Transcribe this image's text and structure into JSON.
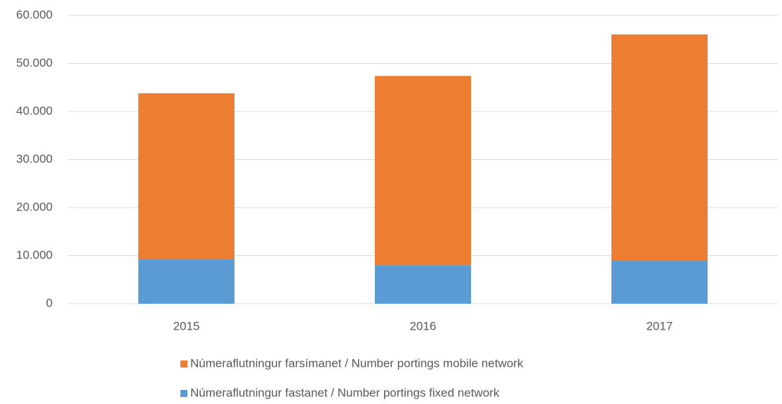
{
  "chart_data": {
    "type": "stacked_bar",
    "categories": [
      "2015",
      "2016",
      "2017"
    ],
    "series": [
      {
        "name": "Númeraflutningur fastanet / Number portings fixed network",
        "color": "#5b9bd5",
        "values": [
          9200,
          8000,
          8900
        ]
      },
      {
        "name": "Númeraflutningur farsímanet / Number portings mobile network",
        "color": "#ed7d31",
        "values": [
          34600,
          39400,
          47150
        ]
      }
    ],
    "ylim": [
      0,
      60000
    ],
    "yticks": [
      0,
      {
        "value": 10000,
        "label": "10.000"
      },
      {
        "value": 20000,
        "label": "20.000"
      },
      {
        "value": 30000,
        "label": "30.000"
      },
      {
        "value": 40000,
        "label": "40.000"
      },
      {
        "value": 50000,
        "label": "50.000"
      },
      {
        "value": 60000,
        "label": "60.000"
      }
    ],
    "grid": true,
    "legend": "bottom"
  }
}
